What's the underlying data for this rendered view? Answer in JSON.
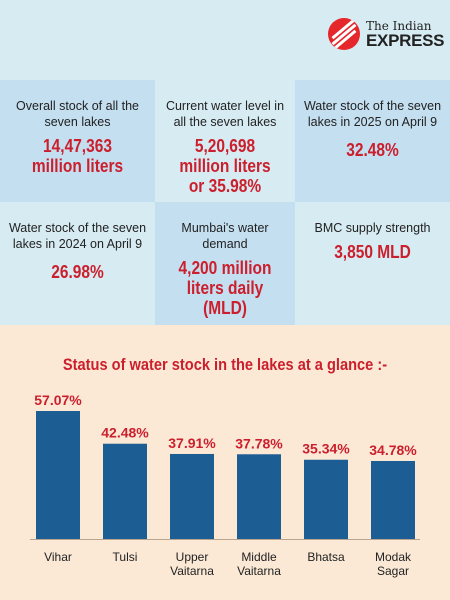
{
  "brand": {
    "line1": "The Indian",
    "line2": "EXPRESS",
    "accent": "#e5262a"
  },
  "stats": [
    {
      "label": "Overall stock of all the seven lakes",
      "value": "14,47,363 million liters"
    },
    {
      "label": "Current water level in all the seven lakes",
      "value": "5,20,698 million liters or 35.98%"
    },
    {
      "label": "Water stock of the seven lakes in 2025 on April 9",
      "value": "32.48%"
    },
    {
      "label": "Water stock of the seven lakes in 2024 on April 9",
      "value": "26.98%"
    },
    {
      "label": "Mumbai's water demand",
      "value": "4,200 million liters daily (MLD)"
    },
    {
      "label": "BMC supply strength",
      "value": "3,850 MLD"
    }
  ],
  "chart_data": {
    "type": "bar",
    "title": "Status of water stock in the lakes at a glance :-",
    "categories": [
      "Vihar",
      "Tulsi",
      "Upper Vaitarna",
      "Middle Vaitarna",
      "Bhatsa",
      "Modak Sagar"
    ],
    "category_lines": [
      [
        "Vihar"
      ],
      [
        "Tulsi"
      ],
      [
        "Upper",
        "Vaitarna"
      ],
      [
        "Middle",
        "Vaitarna"
      ],
      [
        "Bhatsa"
      ],
      [
        "Modak",
        "Sagar"
      ]
    ],
    "values": [
      57.07,
      42.48,
      37.91,
      37.78,
      35.34,
      34.78
    ],
    "value_labels": [
      "57.07%",
      "42.48%",
      "37.91%",
      "37.78%",
      "35.34%",
      "34.78%"
    ],
    "ylim": [
      0,
      57.07
    ],
    "bar_color": "#1c5e94",
    "label_color": "#cc1f2d",
    "grid": false
  }
}
